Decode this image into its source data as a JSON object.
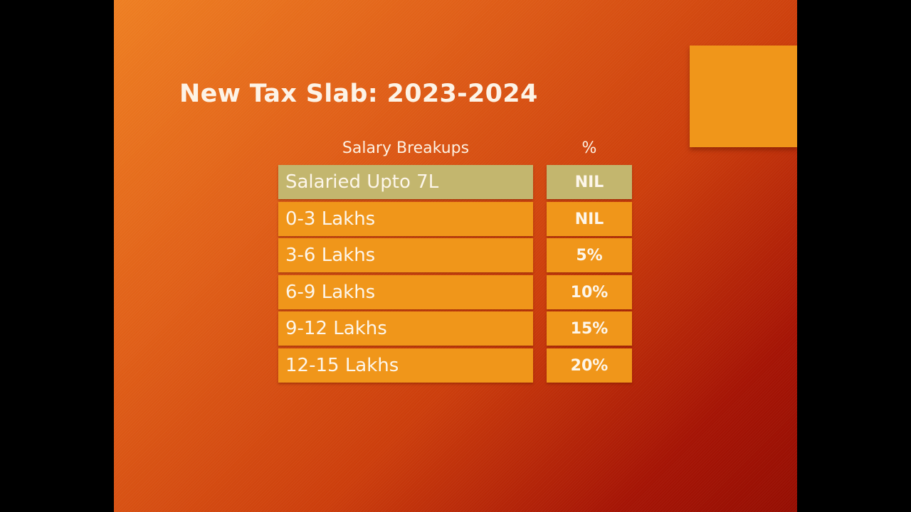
{
  "slide": {
    "title": "New Tax Slab: 2023-2024",
    "colors": {
      "background_start": "#ee7f22",
      "background_end": "#950e02",
      "row_highlight": "#c3b66e",
      "row_default": "#f0961a",
      "text": "#fdf6ea",
      "deco_square": "#f0961a"
    },
    "table": {
      "headers": [
        "Salary Breakups",
        "%"
      ],
      "rows": [
        {
          "label": "Salaried Upto 7L",
          "rate": "NIL",
          "highlight": true
        },
        {
          "label": "0-3 Lakhs",
          "rate": "NIL",
          "highlight": false
        },
        {
          "label": "3-6 Lakhs",
          "rate": "5%",
          "highlight": false
        },
        {
          "label": "6-9 Lakhs",
          "rate": "10%",
          "highlight": false
        },
        {
          "label": "9-12 Lakhs",
          "rate": "15%",
          "highlight": false
        },
        {
          "label": "12-15 Lakhs",
          "rate": "20%",
          "highlight": false
        }
      ]
    }
  }
}
